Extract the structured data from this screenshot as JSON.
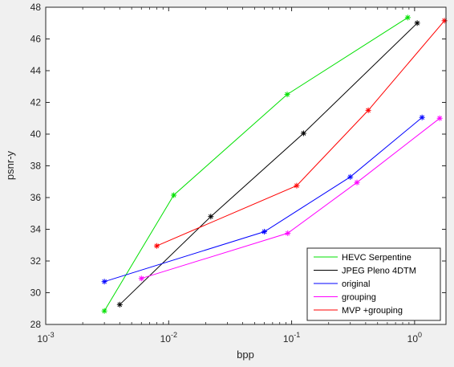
{
  "chart_data": {
    "type": "line",
    "xlabel": "bpp",
    "ylabel": "psnr-y",
    "xscale": "log",
    "xlim": [
      0.001,
      1.8
    ],
    "ylim": [
      28,
      48
    ],
    "x_ticks": [
      {
        "value": 0.001,
        "base": "10",
        "exp": "-3"
      },
      {
        "value": 0.01,
        "base": "10",
        "exp": "-2"
      },
      {
        "value": 0.1,
        "base": "10",
        "exp": "-1"
      },
      {
        "value": 1,
        "base": "10",
        "exp": "0"
      }
    ],
    "y_ticks": [
      "28",
      "30",
      "32",
      "34",
      "36",
      "38",
      "40",
      "42",
      "44",
      "46",
      "48"
    ],
    "grid": false,
    "legend_position": "bottom-right",
    "series": [
      {
        "name": "HEVC Serpentine",
        "color": "#00e000",
        "marker": "asterisk",
        "x": [
          0.003,
          0.011,
          0.092,
          0.88
        ],
        "y": [
          28.85,
          36.15,
          42.5,
          47.35
        ]
      },
      {
        "name": "JPEG Pleno 4DTM",
        "color": "#000000",
        "marker": "asterisk",
        "x": [
          0.004,
          0.022,
          0.125,
          1.05
        ],
        "y": [
          29.25,
          34.8,
          40.05,
          47.0
        ]
      },
      {
        "name": "original",
        "color": "#0000ff",
        "marker": "asterisk",
        "x": [
          0.003,
          0.06,
          0.3,
          1.15
        ],
        "y": [
          30.7,
          33.85,
          37.3,
          41.05
        ]
      },
      {
        "name": "grouping",
        "color": "#ff00ff",
        "marker": "asterisk",
        "x": [
          0.006,
          0.093,
          0.34,
          1.6
        ],
        "y": [
          30.9,
          33.75,
          36.95,
          41.0
        ]
      },
      {
        "name": "MVP +grouping",
        "color": "#ff0000",
        "marker": "asterisk",
        "x": [
          0.008,
          0.11,
          0.42,
          1.75
        ],
        "y": [
          32.95,
          36.75,
          41.5,
          47.15
        ]
      }
    ]
  }
}
